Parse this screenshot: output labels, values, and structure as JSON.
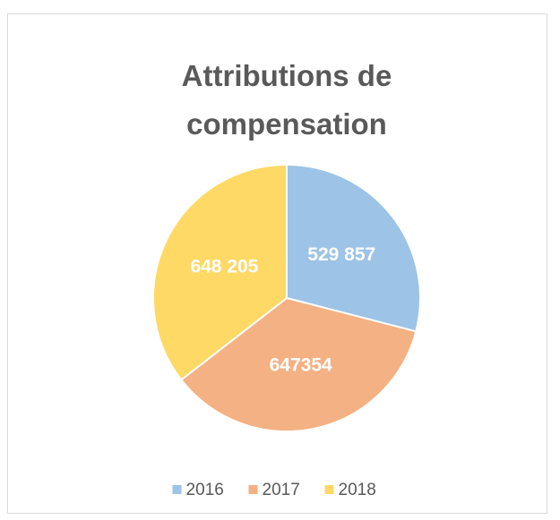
{
  "chart_data": {
    "type": "pie",
    "title": "Attributions de compensation",
    "categories": [
      "2016",
      "2017",
      "2018"
    ],
    "values": [
      529857,
      647354,
      648205
    ],
    "value_labels": [
      "529 857",
      "647354",
      "648 205"
    ],
    "colors": [
      "#9dc3e6",
      "#f4b183",
      "#ffd966"
    ],
    "legend": "bottom"
  }
}
